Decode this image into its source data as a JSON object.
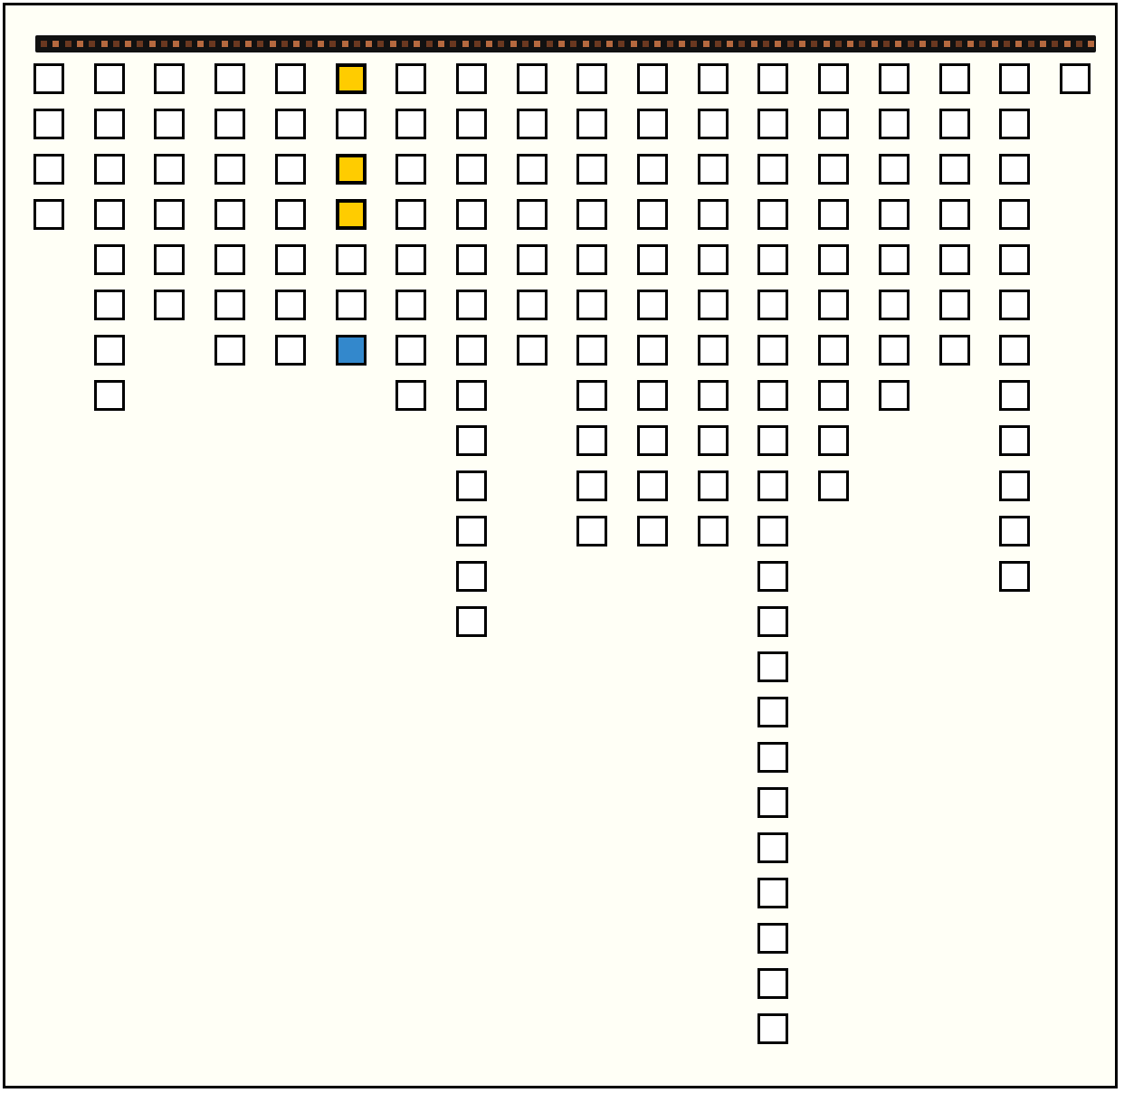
{
  "colors": {
    "empty": "#ffffff",
    "yellow": "#ffcc00",
    "blue": "#3388cc",
    "bar_light": "#b5693f",
    "bar_dark": "#6a3820",
    "background": "#fffff6"
  },
  "bar_segments": 88,
  "columns": [
    [
      "empty",
      "empty",
      "empty",
      "empty"
    ],
    [
      "empty",
      "empty",
      "empty",
      "empty",
      "empty",
      "empty",
      "empty",
      "empty"
    ],
    [
      "empty",
      "empty",
      "empty",
      "empty",
      "empty",
      "empty"
    ],
    [
      "empty",
      "empty",
      "empty",
      "empty",
      "empty",
      "empty",
      "empty"
    ],
    [
      "empty",
      "empty",
      "empty",
      "empty",
      "empty",
      "empty",
      "empty"
    ],
    [
      "yellow",
      "empty",
      "yellow",
      "yellow",
      "empty",
      "empty",
      "blue"
    ],
    [
      "empty",
      "empty",
      "empty",
      "empty",
      "empty",
      "empty",
      "empty",
      "empty"
    ],
    [
      "empty",
      "empty",
      "empty",
      "empty",
      "empty",
      "empty",
      "empty",
      "empty",
      "empty",
      "empty",
      "empty",
      "empty",
      "empty"
    ],
    [
      "empty",
      "empty",
      "empty",
      "empty",
      "empty",
      "empty",
      "empty"
    ],
    [
      "empty",
      "empty",
      "empty",
      "empty",
      "empty",
      "empty",
      "empty",
      "empty",
      "empty",
      "empty",
      "empty"
    ],
    [
      "empty",
      "empty",
      "empty",
      "empty",
      "empty",
      "empty",
      "empty",
      "empty",
      "empty",
      "empty",
      "empty"
    ],
    [
      "empty",
      "empty",
      "empty",
      "empty",
      "empty",
      "empty",
      "empty",
      "empty",
      "empty",
      "empty",
      "empty"
    ],
    [
      "empty",
      "empty",
      "empty",
      "empty",
      "empty",
      "empty",
      "empty",
      "empty",
      "empty",
      "empty",
      "empty",
      "empty",
      "empty",
      "empty",
      "empty",
      "empty",
      "empty",
      "empty",
      "empty",
      "empty",
      "empty",
      "empty"
    ],
    [
      "empty",
      "empty",
      "empty",
      "empty",
      "empty",
      "empty",
      "empty",
      "empty",
      "empty",
      "empty"
    ],
    [
      "empty",
      "empty",
      "empty",
      "empty",
      "empty",
      "empty",
      "empty",
      "empty"
    ],
    [
      "empty",
      "empty",
      "empty",
      "empty",
      "empty",
      "empty",
      "empty"
    ],
    [
      "empty",
      "empty",
      "empty",
      "empty",
      "empty",
      "empty",
      "empty",
      "empty",
      "empty",
      "empty",
      "empty",
      "empty"
    ],
    [
      "empty"
    ]
  ]
}
